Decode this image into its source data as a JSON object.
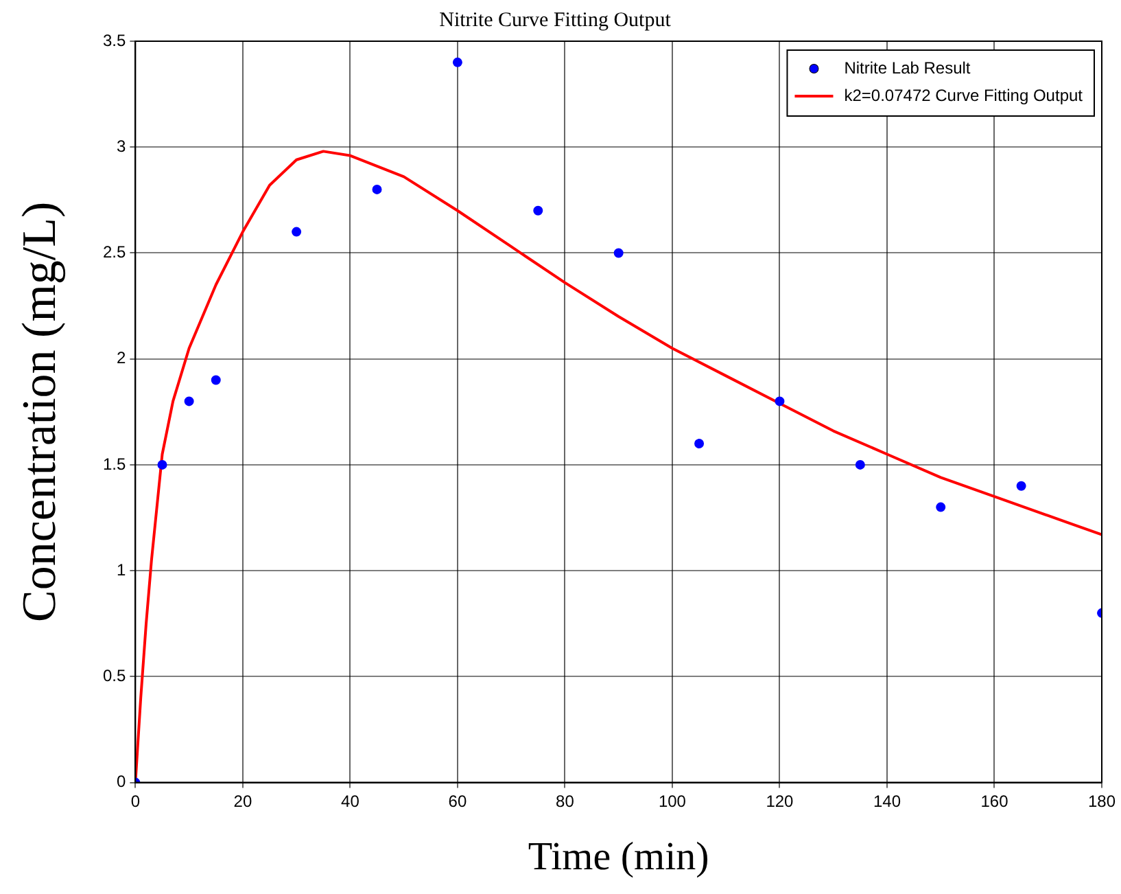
{
  "chart_data": {
    "type": "scatter",
    "title": "Nitrite Curve Fitting Output",
    "xlabel": "Time (min)",
    "ylabel": "Concentration (mg/L)",
    "xlim": [
      0,
      180
    ],
    "xticks": [
      0,
      20,
      40,
      60,
      80,
      100,
      120,
      140,
      160,
      180
    ],
    "ylim": [
      0,
      3.5
    ],
    "yticks": [
      0,
      0.5,
      1,
      1.5,
      2,
      2.5,
      3,
      3.5
    ],
    "grid": true,
    "legend": "top right",
    "marker": "circle",
    "series": [
      {
        "name": "Nitrite Lab Result",
        "color": "#0000ff",
        "x": [
          0,
          5,
          10,
          15,
          30,
          45,
          60,
          75,
          90,
          105,
          120,
          135,
          150,
          165,
          180
        ],
        "values": [
          0,
          1.5,
          1.8,
          1.9,
          2.6,
          2.8,
          3.4,
          2.7,
          2.5,
          1.6,
          1.8,
          1.5,
          1.3,
          1.4,
          0.8
        ]
      },
      {
        "name": "k2=0.07472 Curve Fitting Output",
        "type": "line",
        "marker": "none",
        "line_style": "solid",
        "color": "#ff0000",
        "x": [
          0,
          1,
          2,
          3,
          5,
          7,
          10,
          15,
          20,
          25,
          30,
          35,
          40,
          50,
          60,
          70,
          80,
          90,
          100,
          110,
          120,
          130,
          140,
          150,
          160,
          170,
          180
        ],
        "values": [
          0,
          0.4,
          0.75,
          1.05,
          1.55,
          1.8,
          2.05,
          2.35,
          2.6,
          2.82,
          2.94,
          2.98,
          2.96,
          2.86,
          2.7,
          2.53,
          2.36,
          2.2,
          2.05,
          1.92,
          1.79,
          1.66,
          1.55,
          1.44,
          1.35,
          1.26,
          1.17
        ]
      }
    ]
  }
}
